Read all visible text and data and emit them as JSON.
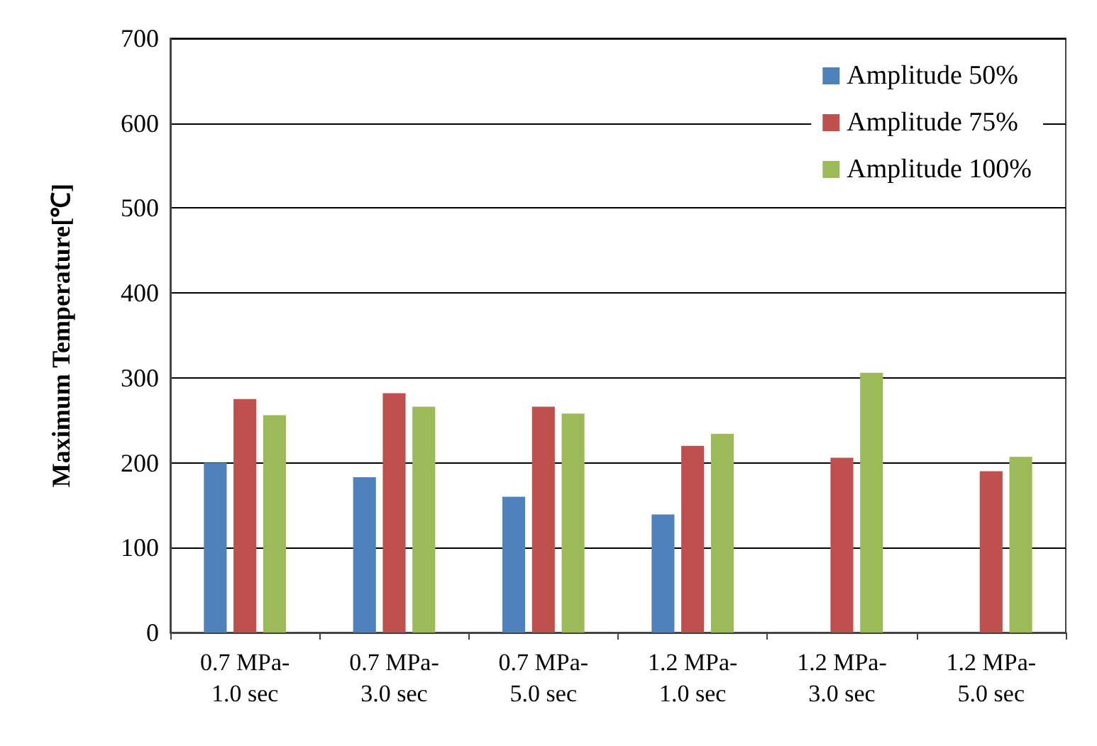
{
  "chart_data": {
    "type": "bar",
    "ylabel": "Maximum Temperature[℃]",
    "categories": [
      "0.7 MPa-\n1.0 sec",
      "0.7 MPa-\n3.0 sec",
      "0.7 MPa-\n5.0 sec",
      "1.2 MPa-\n1.0 sec",
      "1.2 MPa-\n3.0 sec",
      "1.2 MPa-\n5.0 sec"
    ],
    "series": [
      {
        "name": "Amplitude 50%",
        "color": "#4f81bd",
        "values": [
          200,
          183,
          160,
          139,
          null,
          null
        ]
      },
      {
        "name": "Amplitude 75%",
        "color": "#c0504d",
        "values": [
          275,
          282,
          266,
          220,
          206,
          190
        ]
      },
      {
        "name": "Amplitude 100%",
        "color": "#9bbb59",
        "values": [
          256,
          266,
          258,
          234,
          306,
          207
        ]
      }
    ],
    "ylim": [
      0,
      700
    ],
    "yticks": [
      0,
      100,
      200,
      300,
      400,
      500,
      600,
      700
    ],
    "grid": "y",
    "legend": "top right"
  }
}
